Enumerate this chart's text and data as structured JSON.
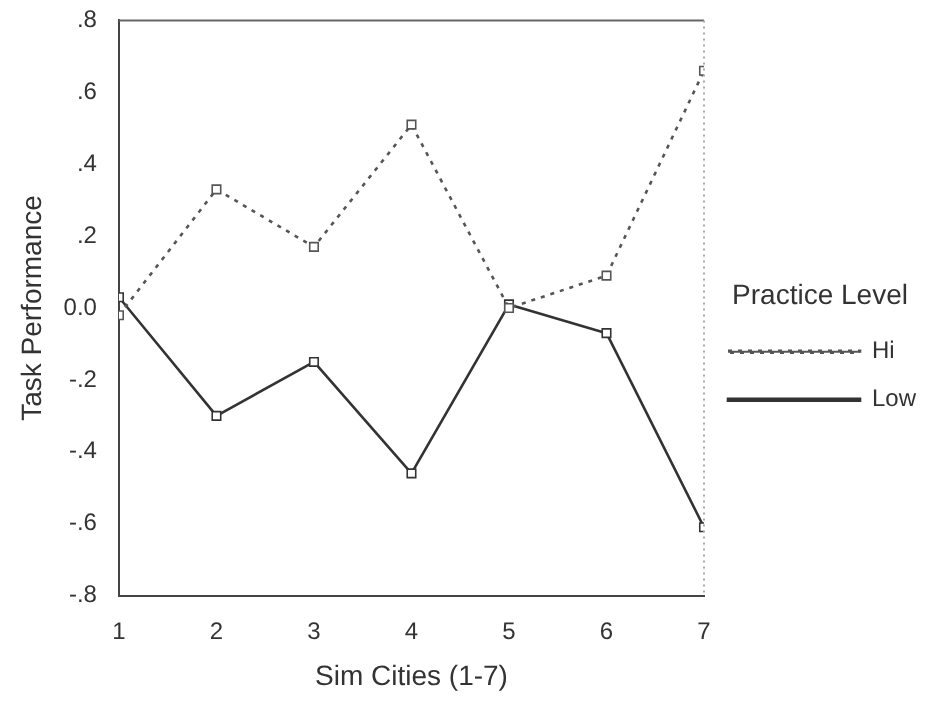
{
  "chart_data": {
    "type": "line",
    "xlabel": "Sim Cities (1-7)",
    "ylabel": "Task Performance",
    "legend_title": "Practice Level",
    "x": [
      1,
      2,
      3,
      4,
      5,
      6,
      7
    ],
    "xlim": [
      1,
      7
    ],
    "xticks": [
      1,
      2,
      3,
      4,
      5,
      6,
      7
    ],
    "ylim": [
      -0.8,
      0.8
    ],
    "yticks": [
      {
        "value": -0.8,
        "label": "-.8"
      },
      {
        "value": -0.6,
        "label": "-.6"
      },
      {
        "value": -0.4,
        "label": "-.4"
      },
      {
        "value": -0.2,
        "label": "-.2"
      },
      {
        "value": 0,
        "label": "0.0"
      },
      {
        "value": 0.2,
        "label": ".2"
      },
      {
        "value": 0.4,
        "label": ".4"
      },
      {
        "value": 0.6,
        "label": ".6"
      },
      {
        "value": 0.8,
        "label": ".8"
      }
    ],
    "grid": false,
    "legend": "right",
    "marker": "square",
    "series": [
      {
        "name": "Hi",
        "color": "#555555",
        "line_style": "dotted",
        "values": [
          -0.02,
          0.33,
          0.17,
          0.51,
          0.0,
          0.09,
          0.66
        ]
      },
      {
        "name": "Low",
        "color": "#333333",
        "line_style": "solid",
        "values": [
          0.03,
          -0.3,
          -0.15,
          -0.46,
          0.01,
          -0.07,
          -0.61
        ]
      }
    ]
  }
}
